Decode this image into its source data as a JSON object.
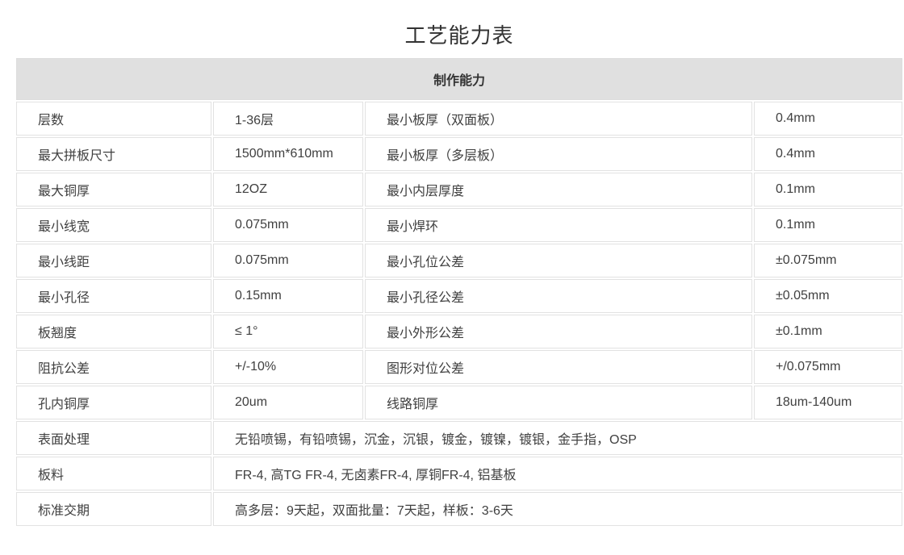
{
  "page": {
    "title": "工艺能力表"
  },
  "table": {
    "header": "制作能力",
    "rows": [
      {
        "type": "quad",
        "cells": [
          "层数",
          "1-36层",
          "最小板厚（双面板）",
          "0.4mm"
        ]
      },
      {
        "type": "quad",
        "cells": [
          "最大拼板尺寸",
          "1500mm*610mm",
          "最小板厚（多层板）",
          "0.4mm"
        ]
      },
      {
        "type": "quad",
        "cells": [
          "最大铜厚",
          "12OZ",
          "最小内层厚度",
          "0.1mm"
        ]
      },
      {
        "type": "quad",
        "cells": [
          "最小线宽",
          "0.075mm",
          "最小焊环",
          "0.1mm"
        ]
      },
      {
        "type": "quad",
        "cells": [
          "最小线距",
          "0.075mm",
          "最小孔位公差",
          "±0.075mm"
        ]
      },
      {
        "type": "quad",
        "cells": [
          "最小孔径",
          "0.15mm",
          "最小孔径公差",
          "±0.05mm"
        ]
      },
      {
        "type": "quad",
        "cells": [
          "板翘度",
          "≤ 1°",
          "最小外形公差",
          "±0.1mm"
        ]
      },
      {
        "type": "quad",
        "cells": [
          "阻抗公差",
          "+/-10%",
          "图形对位公差",
          "+/0.075mm"
        ]
      },
      {
        "type": "quad",
        "cells": [
          "孔内铜厚",
          "20um",
          "线路铜厚",
          "18um-140um"
        ]
      },
      {
        "type": "span",
        "cells": [
          "表面处理",
          "无铅喷锡，有铅喷锡，沉金，沉银，镀金，镀镍，镀银，金手指，OSP"
        ]
      },
      {
        "type": "span",
        "cells": [
          "板料",
          "FR-4, 高TG FR-4, 无卤素FR-4, 厚铜FR-4, 铝基板"
        ]
      },
      {
        "type": "span",
        "cells": [
          "标准交期",
          "高多层：9天起，双面批量：7天起，样板：3-6天"
        ]
      }
    ],
    "colors": {
      "header_background": "#e0e0e0",
      "border": "#e2e2e2",
      "text": "#404040",
      "bottom_strip": "#d9d9d9"
    }
  }
}
